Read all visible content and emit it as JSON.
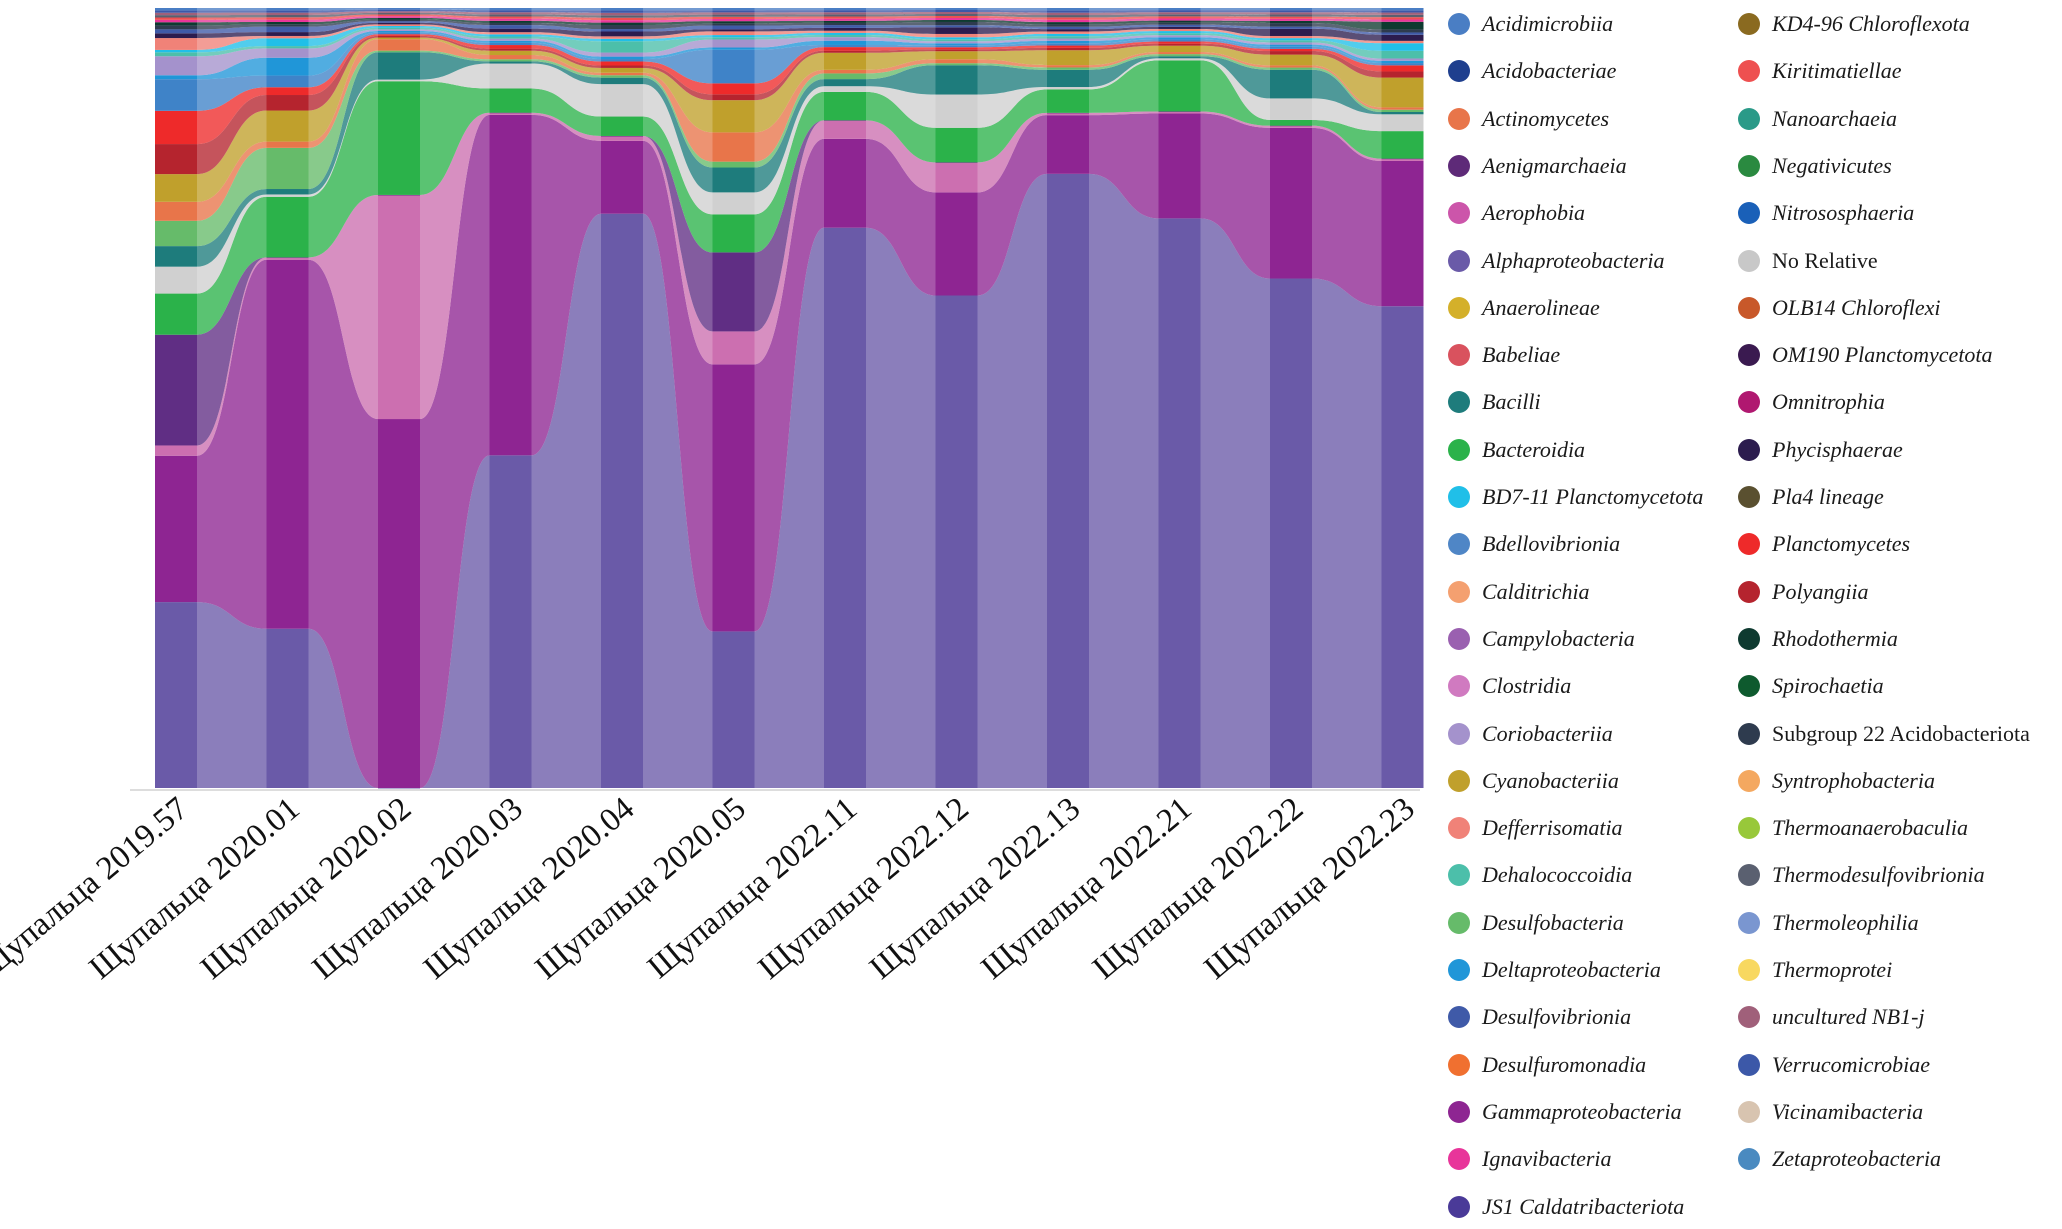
{
  "chart_data": {
    "type": "area",
    "subtype": "alluvial-stacked-composition",
    "title": "",
    "xlabel": "",
    "ylabel": "",
    "ylim": [
      0,
      100
    ],
    "categories": [
      "Щупальца 2019.57",
      "Щупальца 2020.01",
      "Щупальца 2020.02",
      "Щупальца 2020.03",
      "Щупальца 2020.04",
      "Щупальца 2020.05",
      "Щупальца 2022.11",
      "Щупальца 2022.12",
      "Щупальца 2022.13",
      "Щупальца 2022.21",
      "Щупальца 2022.22",
      "Щупальца 2022.23"
    ],
    "legend_position": "right",
    "series": [
      {
        "name": "Alphaproteobacteria",
        "color": "#6a5aa8",
        "values": [
          23.5,
          20.5,
          0,
          46.7,
          70.9,
          21.4,
          78.8,
          74,
          78.5,
          81.5,
          71,
          63
        ]
      },
      {
        "name": "Gammaproteobacteria",
        "color": "#8e2592",
        "values": [
          18.5,
          47.5,
          67.5,
          47.8,
          9,
          36.5,
          12.5,
          15.5,
          7.5,
          15,
          21,
          19
        ]
      },
      {
        "name": "Clostridia",
        "color": "#cc6fb0",
        "values": [
          1.3,
          0.3,
          41,
          0.3,
          0.6,
          4.5,
          2.6,
          4.5,
          0.3,
          0.3,
          0.3,
          0.3
        ]
      },
      {
        "name": "Aenigmarchaeia",
        "color": "#602e84",
        "values": [
          14,
          0,
          0,
          0,
          0,
          10.8,
          0,
          0,
          0,
          0,
          0,
          0
        ]
      },
      {
        "name": "Bacteroidia",
        "color": "#2bb24a",
        "values": [
          5.2,
          7.8,
          20.8,
          3.4,
          2.4,
          5.2,
          4,
          5.2,
          3,
          7.3,
          0.8,
          3.6
        ]
      },
      {
        "name": "No Relative",
        "color": "#d0d0d0",
        "values": [
          3.4,
          0.3,
          0.3,
          3.5,
          4,
          3,
          0.8,
          5,
          0.3,
          0.3,
          3,
          2.2
        ]
      },
      {
        "name": "Bacilli",
        "color": "#1e7c7c",
        "values": [
          2.6,
          0.7,
          5,
          0.3,
          0.8,
          3.4,
          1,
          4.4,
          2.2,
          0.3,
          4,
          0.3
        ]
      },
      {
        "name": "Desulfobacteria",
        "color": "#66bb6a",
        "values": [
          3.2,
          5.3,
          0.3,
          0.3,
          0.3,
          0.8,
          0.8,
          0.3,
          0.3,
          0.3,
          0.3,
          0.3
        ]
      },
      {
        "name": "Actinomycetes",
        "color": "#e8754a",
        "values": [
          2.4,
          0.8,
          2.1,
          0.6,
          0.3,
          4,
          0.5,
          0.6,
          0.3,
          0.3,
          0.3,
          0.3
        ]
      },
      {
        "name": "Cyanobacteriia",
        "color": "#c0a02c",
        "values": [
          3.5,
          4,
          0.3,
          0.6,
          0.6,
          4.4,
          2.4,
          1.2,
          1.9,
          0.9,
          1.5,
          3.9
        ]
      },
      {
        "name": "Polyangiia",
        "color": "#b5242e",
        "values": [
          3.8,
          2,
          0.3,
          0.3,
          0.3,
          0.8,
          0.3,
          0.3,
          0.3,
          0.3,
          0.5,
          0.8
        ]
      },
      {
        "name": "Planctomycetes",
        "color": "#ee2a2a",
        "values": [
          4.2,
          1,
          0.3,
          0.5,
          0.5,
          1.5,
          0.5,
          0.3,
          0.3,
          0.3,
          0.3,
          0.8
        ]
      },
      {
        "name": "Bdellovibrionia",
        "color": "#3f83c8",
        "values": [
          4,
          1.5,
          0.3,
          0.3,
          0.3,
          4.6,
          0.3,
          0.3,
          0.3,
          0.3,
          0.3,
          0.3
        ]
      },
      {
        "name": "Deltaproteobacteria",
        "color": "#2096d8",
        "values": [
          0.5,
          2.3,
          0.3,
          0.3,
          0.3,
          0.3,
          0.6,
          0.3,
          0.3,
          0.3,
          0.3,
          0.3
        ]
      },
      {
        "name": "Coriobacteriia",
        "color": "#a492cc",
        "values": [
          2.4,
          1.2,
          0.3,
          0.3,
          0.5,
          1.1,
          0.5,
          0.3,
          0.3,
          0.3,
          0.3,
          0.3
        ]
      },
      {
        "name": "Dehalococcoidia",
        "color": "#4cbfaa",
        "values": [
          0.5,
          0.3,
          0.3,
          0.3,
          1.4,
          0.3,
          0.3,
          0.3,
          0.3,
          0.3,
          0.3,
          1
        ]
      },
      {
        "name": "BD7-11 Planctomycetota",
        "color": "#20bfe8",
        "values": [
          0.3,
          1,
          0.3,
          0.3,
          0.3,
          0.3,
          0.3,
          0.3,
          0.3,
          0.3,
          0.3,
          1
        ]
      },
      {
        "name": "Defferrisomatia",
        "color": "#f08278",
        "values": [
          1.5,
          0.3,
          0.3,
          0.3,
          0.3,
          0.5,
          0.3,
          0.5,
          0.3,
          0.3,
          0.3,
          0.3
        ]
      },
      {
        "name": "Phycisphaerae",
        "color": "#2c1c4e",
        "values": [
          0.6,
          0.5,
          0.3,
          0.5,
          0.6,
          0.3,
          0.4,
          1,
          0.3,
          0.3,
          1,
          0.8
        ]
      },
      {
        "name": "Desulfovibrionia",
        "color": "#3f5aa8",
        "values": [
          0.5,
          0.7,
          0.3,
          0.5,
          0.3,
          0.5,
          0.4,
          0.3,
          0.3,
          0.3,
          0.3,
          0.3
        ]
      },
      {
        "name": "Subgroup 22 Acidobacteriota",
        "color": "#2e3b4e",
        "values": [
          0.5,
          0.3,
          0.3,
          0.3,
          0.5,
          0.3,
          0.3,
          0.5,
          0.3,
          0.3,
          0.5,
          0.4
        ]
      },
      {
        "name": "Rhodothermia",
        "color": "#0e3a30",
        "values": [
          0.4,
          0.3,
          0.3,
          0.3,
          0.3,
          0.3,
          0.3,
          0.3,
          0.3,
          0.3,
          0.3,
          1
        ]
      },
      {
        "name": "Ignavibacteria",
        "color": "#e8359a",
        "values": [
          0.3,
          0.3,
          0.3,
          0.3,
          0.3,
          0.3,
          0.3,
          0.3,
          0.3,
          0.3,
          0.3,
          0.3
        ]
      },
      {
        "name": "Kiritimatiellae",
        "color": "#ee5050",
        "values": [
          0.3,
          0.3,
          0.3,
          0.3,
          0.3,
          0.3,
          0.3,
          0.3,
          0.3,
          0.3,
          0.3,
          0.3
        ]
      },
      {
        "name": "Thermodesulfovibrionia",
        "color": "#5a6070",
        "values": [
          0.3,
          0.3,
          0.3,
          0.3,
          0.3,
          0.3,
          0.3,
          0.3,
          0.3,
          0.3,
          0.3,
          0.3
        ]
      },
      {
        "name": "uncultured NB1-j",
        "color": "#a0607a",
        "values": [
          0.3,
          0.3,
          0.3,
          0.3,
          0.3,
          0.3,
          0.3,
          0.3,
          0.3,
          0.3,
          0.3,
          0.3
        ]
      },
      {
        "name": "Verrucomicrobiae",
        "color": "#3c58a8",
        "values": [
          0.3,
          0.3,
          0.3,
          0.3,
          0.3,
          0.3,
          0.3,
          0.3,
          0.3,
          0.3,
          0.3,
          0.3
        ]
      },
      {
        "name": "Acidimicrobiia",
        "color": "#4a7ec4",
        "values": [
          0.3,
          0.3,
          0.3,
          0.3,
          0.3,
          0.3,
          0.3,
          0.3,
          0.3,
          0.3,
          0.3,
          0.3
        ]
      }
    ],
    "legend": [
      {
        "label": "Acidimicrobiia",
        "color": "#4a7ec4",
        "italic": true
      },
      {
        "label": "Acidobacteriae",
        "color": "#1f3f8e",
        "italic": true
      },
      {
        "label": "Actinomycetes",
        "color": "#e8754a",
        "italic": true
      },
      {
        "label": "Aenigmarchaeia",
        "color": "#5e2a78",
        "italic": true
      },
      {
        "label": "Aerophobia",
        "color": "#cc55aa",
        "italic": true
      },
      {
        "label": "Alphaproteobacteria",
        "color": "#6a5aa8",
        "italic": true
      },
      {
        "label": "Anaerolineae",
        "color": "#d4b02a",
        "italic": true
      },
      {
        "label": "Babeliae",
        "color": "#d9525e",
        "italic": true
      },
      {
        "label": "Bacilli",
        "color": "#1e7c7c",
        "italic": true
      },
      {
        "label": "Bacteroidia",
        "color": "#2bb24a",
        "italic": true
      },
      {
        "label": "BD7-11 Planctomycetota",
        "color": "#20bfe8",
        "italic": true
      },
      {
        "label": "Bdellovibrionia",
        "color": "#4f86c6",
        "italic": true
      },
      {
        "label": "Calditrichia",
        "color": "#f4a070",
        "italic": true
      },
      {
        "label": "Campylobacteria",
        "color": "#9a60b0",
        "italic": true
      },
      {
        "label": "Clostridia",
        "color": "#d07ac0",
        "italic": true
      },
      {
        "label": "Coriobacteriia",
        "color": "#a492cc",
        "italic": true
      },
      {
        "label": "Cyanobacteriia",
        "color": "#c0a02c",
        "italic": true
      },
      {
        "label": "Defferrisomatia",
        "color": "#f08278",
        "italic": true
      },
      {
        "label": "Dehalococcoidia",
        "color": "#4cbfaa",
        "italic": true
      },
      {
        "label": "Desulfobacteria",
        "color": "#66bb6a",
        "italic": true
      },
      {
        "label": "Deltaproteobacteria",
        "color": "#2096d8",
        "italic": true
      },
      {
        "label": "Desulfovibrionia",
        "color": "#3f5aa8",
        "italic": true
      },
      {
        "label": "Desulfuromonadia",
        "color": "#f07030",
        "italic": true
      },
      {
        "label": "Gammaproteobacteria",
        "color": "#8e2592",
        "italic": true
      },
      {
        "label": "Ignavibacteria",
        "color": "#e8359a",
        "italic": true
      },
      {
        "label": "JS1 Caldatribacteriota",
        "color": "#4a3a98",
        "italic": true
      },
      {
        "label": "KD4-96 Chloroflexota",
        "color": "#8a6a20",
        "italic": true
      },
      {
        "label": "Kiritimatiellae",
        "color": "#ee5050",
        "italic": true
      },
      {
        "label": "Nanoarchaeia",
        "color": "#2a9a88",
        "italic": true
      },
      {
        "label": "Negativicutes",
        "color": "#2a8a40",
        "italic": true
      },
      {
        "label": "Nitrososphaeria",
        "color": "#1a60b8",
        "italic": true
      },
      {
        "label": "No Relative",
        "color": "#c8c8c8",
        "italic": false
      },
      {
        "label": "OLB14 Chloroflexi",
        "color": "#c8582a",
        "italic": true
      },
      {
        "label": "OM190 Planctomycetota",
        "color": "#3a1a50",
        "italic": true
      },
      {
        "label": "Omnitrophia",
        "color": "#b01870",
        "italic": true
      },
      {
        "label": "Phycisphaerae",
        "color": "#2c1c4e",
        "italic": true
      },
      {
        "label": "Pla4 lineage",
        "color": "#5a5030",
        "italic": true
      },
      {
        "label": "Planctomycetes",
        "color": "#ee2a2a",
        "italic": true
      },
      {
        "label": "Polyangiia",
        "color": "#b5242e",
        "italic": true
      },
      {
        "label": "Rhodothermia",
        "color": "#0e3a30",
        "italic": true
      },
      {
        "label": "Spirochaetia",
        "color": "#0e5a2e",
        "italic": true
      },
      {
        "label": "Subgroup 22 Acidobacteriota",
        "color": "#2e3b4e",
        "italic": false
      },
      {
        "label": "Syntrophobacteria",
        "color": "#f4a860",
        "italic": true
      },
      {
        "label": "Thermoanaerobaculia",
        "color": "#98c83a",
        "italic": true
      },
      {
        "label": "Thermodesulfovibrionia",
        "color": "#5a6070",
        "italic": true
      },
      {
        "label": "Thermoleophilia",
        "color": "#7a96d0",
        "italic": true
      },
      {
        "label": "Thermoprotei",
        "color": "#f8d860",
        "italic": true
      },
      {
        "label": "uncultured NB1-j",
        "color": "#a0607a",
        "italic": true
      },
      {
        "label": "Verrucomicrobiae",
        "color": "#3c58a8",
        "italic": true
      },
      {
        "label": "Vicinamibacteria",
        "color": "#d8c4b0",
        "italic": true
      },
      {
        "label": "Zetaproteobacteria",
        "color": "#4a8ac0",
        "italic": true
      }
    ]
  }
}
